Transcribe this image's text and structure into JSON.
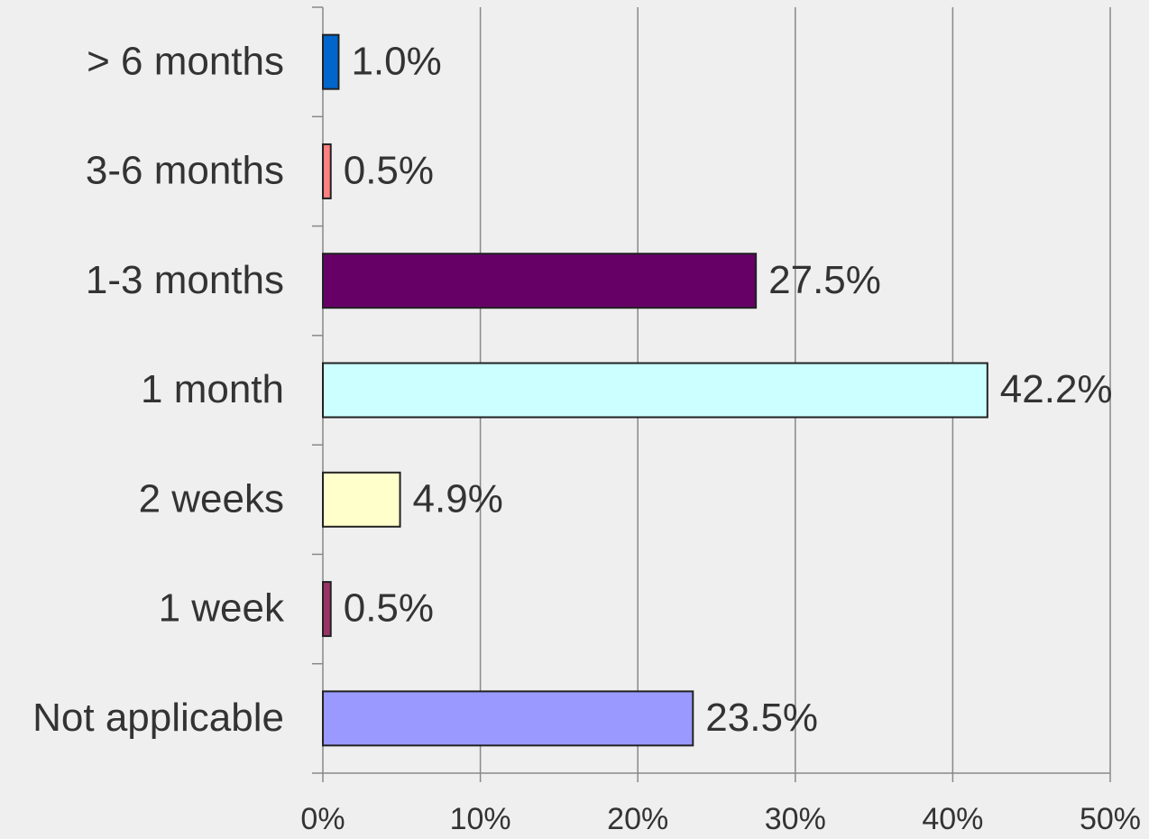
{
  "chart_data": {
    "type": "bar",
    "orientation": "horizontal",
    "categories": [
      "> 6 months",
      "3-6 months",
      "1-3 months",
      "1 month",
      "2 weeks",
      "1 week",
      "Not applicable"
    ],
    "values": [
      1.0,
      0.5,
      27.5,
      42.2,
      4.9,
      0.5,
      23.5
    ],
    "value_labels": [
      "1.0%",
      "0.5%",
      "27.5%",
      "42.2%",
      "4.9%",
      "0.5%",
      "23.5%"
    ],
    "colors": [
      "#0066cc",
      "#ff8080",
      "#660066",
      "#ccffff",
      "#ffffcc",
      "#993366",
      "#9999ff"
    ],
    "xlim": [
      0,
      50
    ],
    "xticks": [
      {
        "value": 0,
        "label": "0%"
      },
      {
        "value": 10,
        "label": "10%"
      },
      {
        "value": 20,
        "label": "20%"
      },
      {
        "value": 30,
        "label": "30%"
      },
      {
        "value": 40,
        "label": "40%"
      },
      {
        "value": 50,
        "label": "50%"
      }
    ],
    "grid": true
  }
}
